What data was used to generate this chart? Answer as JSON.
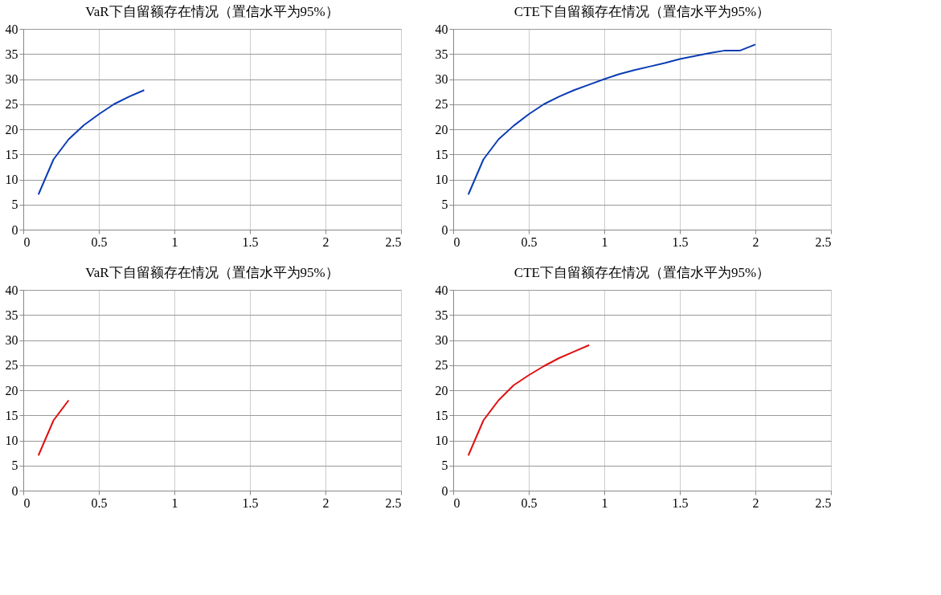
{
  "chart_data": [
    {
      "type": "line",
      "title": "VaR下自留额存在情况（置信水平为95%）",
      "x": [
        0.1,
        0.2,
        0.3,
        0.4,
        0.5,
        0.6,
        0.7,
        0.8
      ],
      "series": [
        {
          "color": "#0a3cb4",
          "values": [
            7,
            14,
            18,
            20.8,
            23,
            25,
            26.5,
            27.8
          ]
        }
      ],
      "xlim": [
        0,
        2.5
      ],
      "xticks": [
        0,
        0.5,
        1,
        1.5,
        2,
        2.5
      ],
      "ylim": [
        0,
        40
      ],
      "yticks": [
        0,
        5,
        10,
        15,
        20,
        25,
        30,
        35,
        40
      ],
      "grid": true,
      "legend": false
    },
    {
      "type": "line",
      "title": "CTE下自留额存在情况（置信水平为95%）",
      "x": [
        0.1,
        0.2,
        0.3,
        0.4,
        0.5,
        0.6,
        0.7,
        0.8,
        0.9,
        1.0,
        1.1,
        1.2,
        1.3,
        1.4,
        1.5,
        1.6,
        1.7,
        1.8,
        1.9,
        2.0
      ],
      "series": [
        {
          "color": "#0a3cb4",
          "values": [
            7,
            14,
            18,
            20.7,
            23,
            25,
            26.5,
            27.8,
            28.9,
            30,
            31,
            31.8,
            32.5,
            33.2,
            34,
            34.6,
            35.2,
            35.7,
            35.7,
            36.9
          ]
        }
      ],
      "xlim": [
        0,
        2.5
      ],
      "xticks": [
        0,
        0.5,
        1,
        1.5,
        2,
        2.5
      ],
      "ylim": [
        0,
        40
      ],
      "yticks": [
        0,
        5,
        10,
        15,
        20,
        25,
        30,
        35,
        40
      ],
      "grid": true,
      "legend": false
    },
    {
      "type": "line",
      "title": "VaR下自留额存在情况（置信水平为95%）",
      "x": [
        0.1,
        0.2,
        0.3
      ],
      "series": [
        {
          "color": "#e01010",
          "values": [
            7,
            14,
            18
          ]
        }
      ],
      "xlim": [
        0,
        2.5
      ],
      "xticks": [
        0,
        0.5,
        1,
        1.5,
        2,
        2.5
      ],
      "ylim": [
        0,
        40
      ],
      "yticks": [
        0,
        5,
        10,
        15,
        20,
        25,
        30,
        35,
        40
      ],
      "grid": true,
      "legend": false
    },
    {
      "type": "line",
      "title": "CTE下自留额存在情况（置信水平为95%）",
      "x": [
        0.1,
        0.2,
        0.3,
        0.4,
        0.5,
        0.6,
        0.7,
        0.8,
        0.9
      ],
      "series": [
        {
          "color": "#e01010",
          "values": [
            7,
            14,
            18,
            21,
            23,
            24.8,
            26.4,
            27.7,
            29
          ]
        }
      ],
      "xlim": [
        0,
        2.5
      ],
      "xticks": [
        0,
        0.5,
        1,
        1.5,
        2,
        2.5
      ],
      "ylim": [
        0,
        40
      ],
      "yticks": [
        0,
        5,
        10,
        15,
        20,
        25,
        30,
        35,
        40
      ],
      "grid": true,
      "legend": false
    }
  ]
}
